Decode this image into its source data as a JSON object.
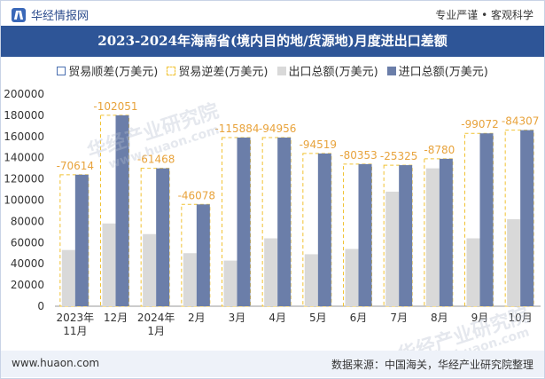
{
  "header": {
    "brand": "华经情报网",
    "tagline": "专业严谨 • 客观科学"
  },
  "title": "2023-2024年海南省(境内目的地/货源地)月度进出口差额",
  "legend": {
    "surplus": "贸易顺差(万美元)",
    "deficit": "贸易逆差(万美元)",
    "export": "出口总额(万美元)",
    "import": "进口总额(万美元)"
  },
  "watermarks": [
    "华经产业研究院",
    "www.huaon.com",
    "华经产业研究院",
    "www.huaon.com"
  ],
  "footer": {
    "website": "www.huaon.com",
    "source": "数据来源：中国海关，华经产业研究院整理"
  },
  "colors": {
    "export": "#d9d9d9",
    "import": "#6b7ea9",
    "deficit_border": "#f1c232",
    "label": "#e8a33c",
    "title_bg": "#2e5597"
  },
  "chart_data": {
    "type": "bar",
    "categories": [
      "2023年\n11月",
      "12月",
      "2024年\n1月",
      "2月",
      "3月",
      "4月",
      "5月",
      "6月",
      "7月",
      "8月",
      "9月",
      "10月"
    ],
    "series": [
      {
        "name": "出口总额(万美元)",
        "values": [
          53000,
          78000,
          68000,
          50000,
          43000,
          64000,
          49000,
          54000,
          108000,
          130000,
          64000,
          82000
        ]
      },
      {
        "name": "进口总额(万美元)",
        "values": [
          124000,
          180000,
          130000,
          96000,
          159000,
          159000,
          144000,
          134000,
          133000,
          139000,
          163000,
          166000
        ]
      },
      {
        "name": "贸易逆差(万美元)",
        "values": [
          -70614,
          -102051,
          -61468,
          -46078,
          -115884,
          -94956,
          -94519,
          -80353,
          -25325,
          -8780,
          -99072,
          -84307
        ]
      }
    ],
    "balance_labels": [
      "-70614",
      "-102051",
      "-61468",
      "-46078",
      "-115884",
      "-94956",
      "-94519",
      "-80353",
      "-25325",
      "-8780",
      "-99072",
      "-84307"
    ],
    "y_ticks": [
      "0",
      "20000",
      "40000",
      "60000",
      "80000",
      "100000",
      "120000",
      "140000",
      "160000",
      "180000",
      "200000"
    ],
    "ylim": [
      0,
      200000
    ],
    "grid": false,
    "legend_position": "top"
  }
}
